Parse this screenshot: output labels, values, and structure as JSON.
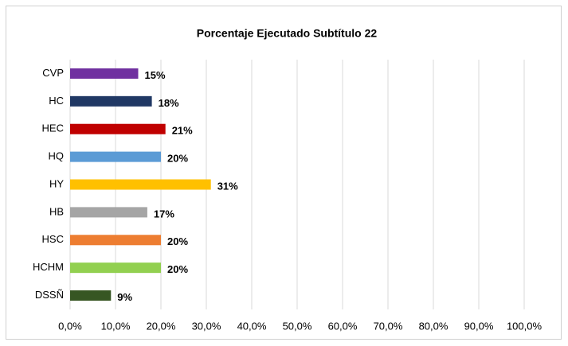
{
  "chart_data": {
    "type": "bar",
    "orientation": "horizontal",
    "title": "Porcentaje Ejecutado Subtítulo 22",
    "categories": [
      "CVP",
      "HC",
      "HEC",
      "HQ",
      "HY",
      "HB",
      "HSC",
      "HCHM",
      "DSSÑ"
    ],
    "values": [
      15,
      18,
      21,
      20,
      31,
      17,
      20,
      20,
      9
    ],
    "value_labels": [
      "15%",
      "18%",
      "21%",
      "20%",
      "31%",
      "17%",
      "20%",
      "20%",
      "9%"
    ],
    "colors": [
      "#7030a0",
      "#203864",
      "#c00000",
      "#5b9bd5",
      "#ffc000",
      "#a5a5a5",
      "#ed7d31",
      "#92d050",
      "#375623"
    ],
    "xlim": [
      0,
      100
    ],
    "xticks": [
      {
        "value": 0,
        "label": "0,0%"
      },
      {
        "value": 10,
        "label": "10,0%"
      },
      {
        "value": 20,
        "label": "20,0%"
      },
      {
        "value": 30,
        "label": "30,0%"
      },
      {
        "value": 40,
        "label": "40,0%"
      },
      {
        "value": 50,
        "label": "50,0%"
      },
      {
        "value": 60,
        "label": "60,0%"
      },
      {
        "value": 70,
        "label": "70,0%"
      },
      {
        "value": 80,
        "label": "80,0%"
      },
      {
        "value": 90,
        "label": "90,0%"
      },
      {
        "value": 100,
        "label": "100,0%"
      }
    ],
    "grid": true
  }
}
